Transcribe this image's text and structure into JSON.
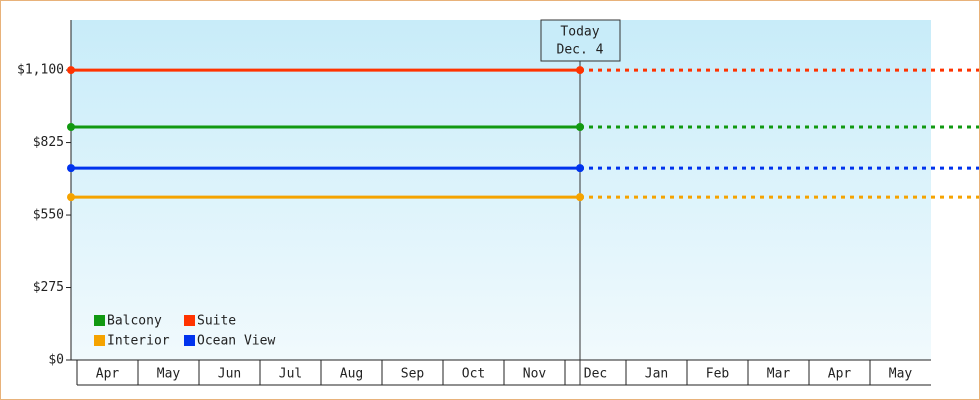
{
  "chart_data": {
    "type": "line",
    "categories": [
      "Apr",
      "May",
      "Jun",
      "Jul",
      "Aug",
      "Sep",
      "Oct",
      "Nov",
      "Dec",
      "Jan",
      "Feb",
      "Mar",
      "Apr",
      "May"
    ],
    "series": [
      {
        "name": "Balcony",
        "color": "#119911",
        "value": 884
      },
      {
        "name": "Suite",
        "color": "#ff3300",
        "value": 1100
      },
      {
        "name": "Interior",
        "color": "#f5a300",
        "value": 618
      },
      {
        "name": "Ocean View",
        "color": "#0033ee",
        "value": 728
      }
    ],
    "ylim": [
      0,
      1290
    ],
    "yticks": [
      {
        "value": 0,
        "label": "$0"
      },
      {
        "value": 275,
        "label": "$275"
      },
      {
        "value": 550,
        "label": "$550"
      },
      {
        "value": 825,
        "label": "$825"
      },
      {
        "value": 1100,
        "label": "$1,100"
      }
    ],
    "annotation": [
      "Today",
      "Dec. 4"
    ]
  }
}
